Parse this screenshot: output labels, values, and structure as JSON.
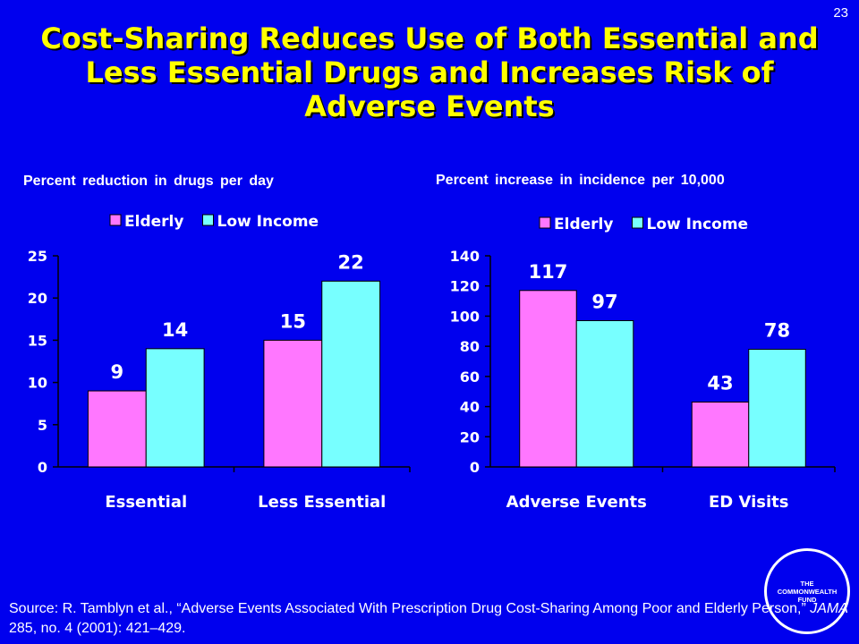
{
  "slide": {
    "page_number": "23",
    "title": "Cost-Sharing Reduces Use of Both Essential and Less Essential Drugs and Increases Risk of Adverse Events",
    "source_prefix": "Source: R. Tamblyn et al., “Adverse Events Associated With Prescription Drug Cost-Sharing Among Poor and Elderly Person,” ",
    "source_journal": "JAMA",
    "source_suffix": " 285, no. 4 (2001): 421–429.",
    "logo_text": "THE COMMONWEALTH FUND"
  },
  "colors": {
    "background": "#0000ee",
    "title": "#ffff00",
    "elderly": "#ff77ff",
    "low_income": "#77ffff"
  },
  "chart_data": [
    {
      "type": "bar",
      "title": "Percent reduction in drugs per day",
      "categories": [
        "Essential",
        "Less Essential"
      ],
      "series": [
        {
          "name": "Elderly",
          "values": [
            9,
            15
          ]
        },
        {
          "name": "Low Income",
          "values": [
            14,
            22
          ]
        }
      ],
      "ylim": [
        0,
        25
      ],
      "yticks": [
        0,
        5,
        10,
        15,
        20,
        25
      ],
      "legend": "top",
      "grid": false
    },
    {
      "type": "bar",
      "title": "Percent increase in incidence per 10,000",
      "categories": [
        "Adverse Events",
        "ED Visits"
      ],
      "series": [
        {
          "name": "Elderly",
          "values": [
            117,
            43
          ]
        },
        {
          "name": "Low Income",
          "values": [
            97,
            78
          ]
        }
      ],
      "ylim": [
        0,
        140
      ],
      "yticks": [
        0,
        20,
        40,
        60,
        80,
        100,
        120,
        140
      ],
      "legend": "top",
      "grid": false
    }
  ]
}
